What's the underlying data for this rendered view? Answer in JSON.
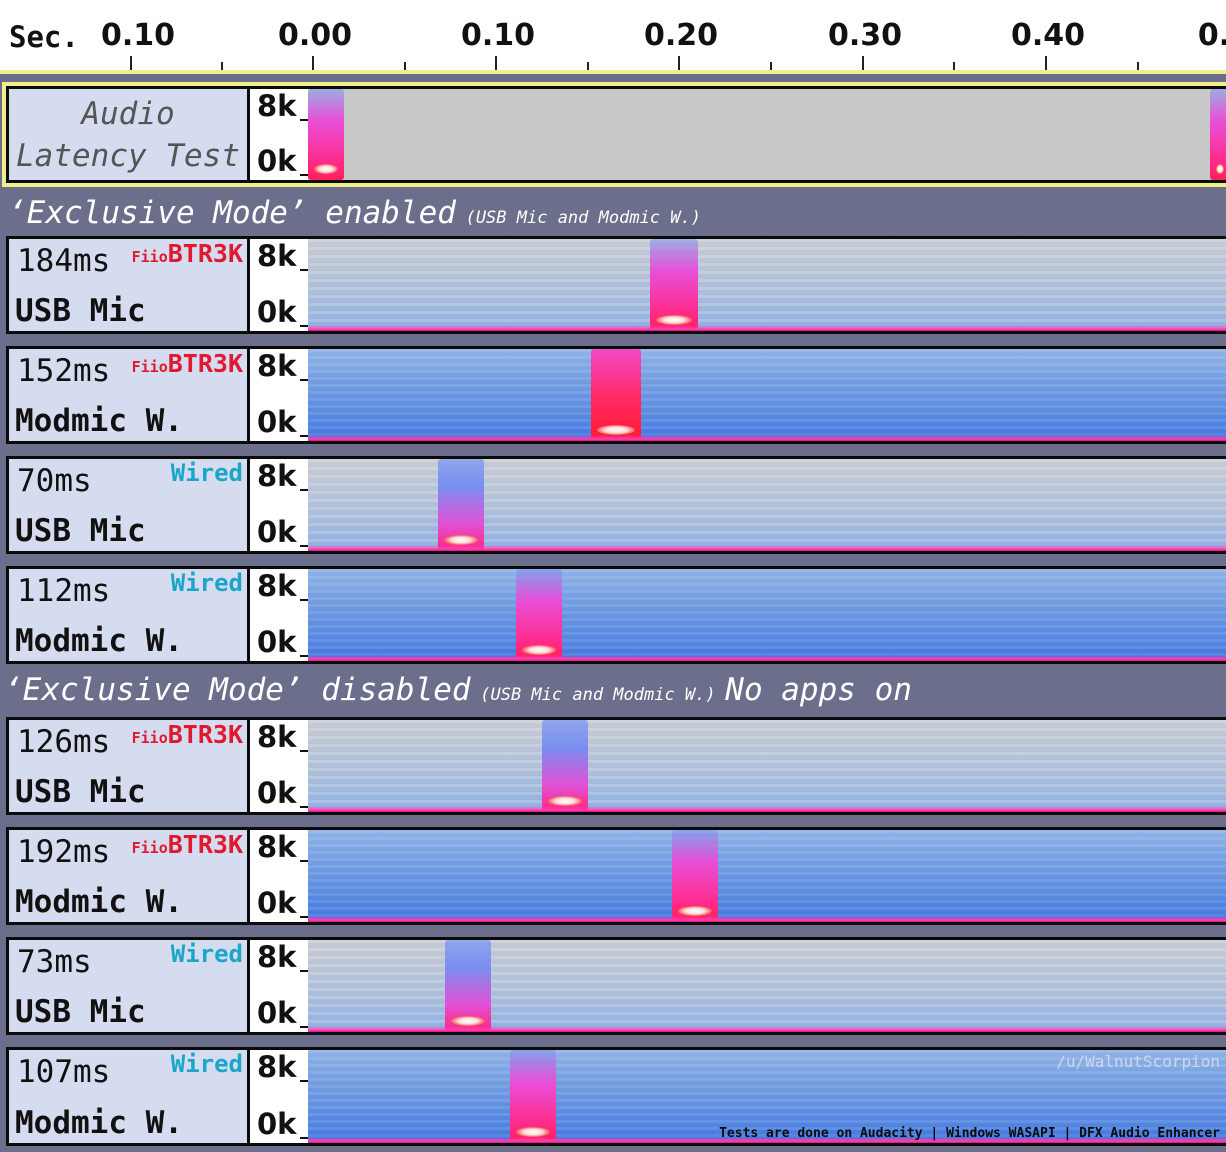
{
  "ruler": {
    "unit": "Sec.",
    "ticks": [
      "0.10",
      "0.00",
      "0.10",
      "0.20",
      "0.30",
      "0.40",
      "0."
    ]
  },
  "title_track": {
    "line1": "Audio",
    "line2": "Latency Test",
    "scale_top": "8k",
    "scale_bottom": "0k"
  },
  "sections": [
    {
      "title": "‘Exclusive Mode’ enabled",
      "note": "(USB Mic and Modmic W.)",
      "suffix": ""
    },
    {
      "title": "‘Exclusive Mode’ disabled",
      "note": "(USB Mic and Modmic W.)",
      "suffix": "No apps on"
    }
  ],
  "tracks": [
    {
      "latency": "184ms",
      "mic": "USB Mic",
      "badge_brand": "Fiio",
      "badge_model": "BTR3K",
      "wired": "",
      "scale_top": "8k",
      "scale_bottom": "0k"
    },
    {
      "latency": "152ms",
      "mic": "Modmic W.",
      "badge_brand": "Fiio",
      "badge_model": "BTR3K",
      "wired": "",
      "scale_top": "8k",
      "scale_bottom": "0k"
    },
    {
      "latency": "70ms",
      "mic": "USB Mic",
      "badge_brand": "",
      "badge_model": "",
      "wired": "Wired",
      "scale_top": "8k",
      "scale_bottom": "0k"
    },
    {
      "latency": "112ms",
      "mic": "Modmic W.",
      "badge_brand": "",
      "badge_model": "",
      "wired": "Wired",
      "scale_top": "8k",
      "scale_bottom": "0k"
    },
    {
      "latency": "126ms",
      "mic": "USB Mic",
      "badge_brand": "Fiio",
      "badge_model": "BTR3K",
      "wired": "",
      "scale_top": "8k",
      "scale_bottom": "0k"
    },
    {
      "latency": "192ms",
      "mic": "Modmic W.",
      "badge_brand": "Fiio",
      "badge_model": "BTR3K",
      "wired": "",
      "scale_top": "8k",
      "scale_bottom": "0k"
    },
    {
      "latency": "73ms",
      "mic": "USB Mic",
      "badge_brand": "",
      "badge_model": "",
      "wired": "Wired",
      "scale_top": "8k",
      "scale_bottom": "0k"
    },
    {
      "latency": "107ms",
      "mic": "Modmic W.",
      "badge_brand": "",
      "badge_model": "",
      "wired": "Wired",
      "scale_top": "8k",
      "scale_bottom": "0k"
    }
  ],
  "credit": "/u/WalnutScorpion",
  "footnote": "Tests are done on Audacity | Windows WASAPI | DFX Audio Enhancer",
  "colors": {
    "background": "#6c6f8c",
    "label_panel": "#d6dcf0",
    "fiio_red": "#e0192f",
    "wired_cyan": "#1aa6c8",
    "selection_yellow": "#f1ef88"
  }
}
